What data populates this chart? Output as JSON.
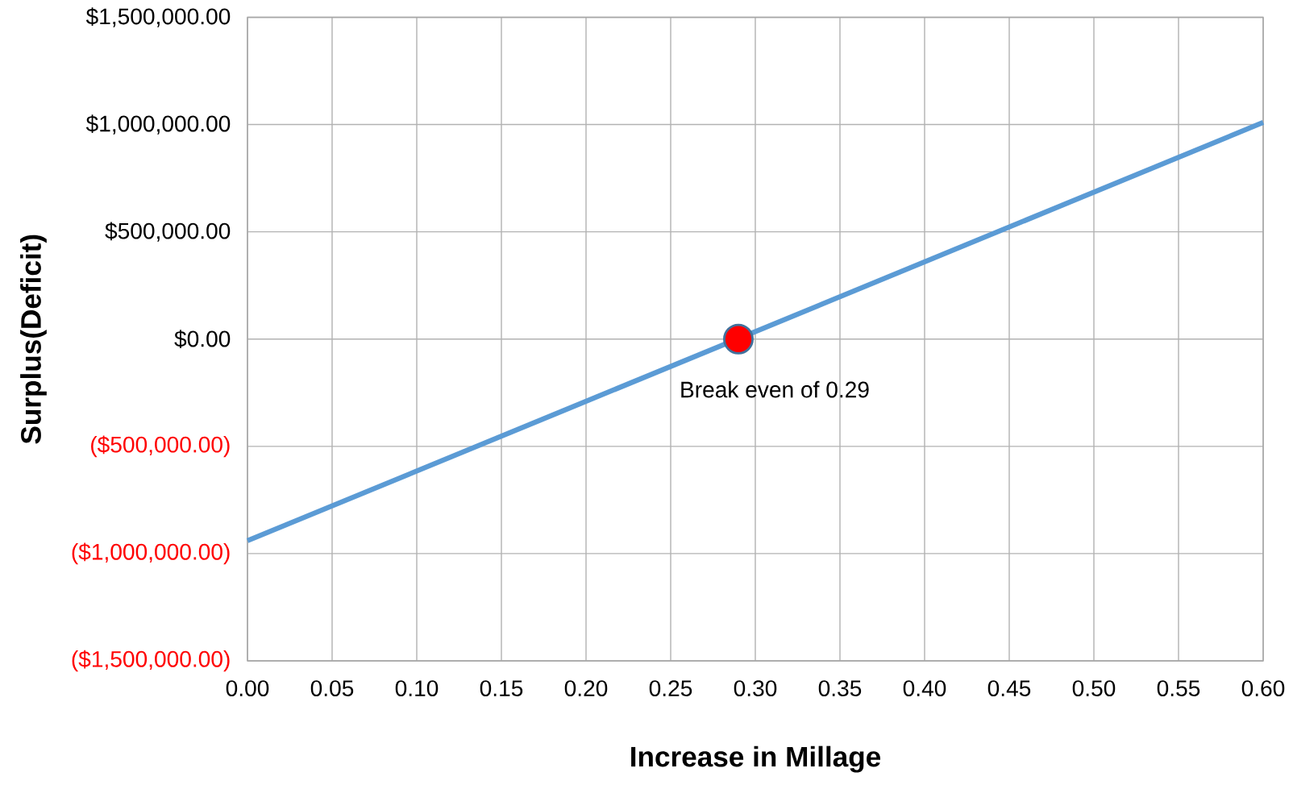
{
  "chart_data": {
    "type": "line",
    "xlabel": "Increase in Millage",
    "ylabel": "Surplus(Deficit)",
    "series": [
      {
        "color": "#5b9bd5",
        "x": [
          0,
          0.6
        ],
        "values": [
          -940000,
          1010000
        ],
        "marker": "none"
      },
      {
        "type": "scatter",
        "color": "#ff0000",
        "x": [
          0.29
        ],
        "values": [
          0
        ],
        "marker": "circle"
      }
    ],
    "xlim": [
      0,
      0.6
    ],
    "ylim": [
      -1500000,
      1500000
    ],
    "xticks": [
      {
        "value": 0,
        "label": "0.00"
      },
      {
        "value": 0.05,
        "label": "0.05"
      },
      {
        "value": 0.1,
        "label": "0.10"
      },
      {
        "value": 0.15,
        "label": "0.15"
      },
      {
        "value": 0.2,
        "label": "0.20"
      },
      {
        "value": 0.25,
        "label": "0.25"
      },
      {
        "value": 0.3,
        "label": "0.30"
      },
      {
        "value": 0.35,
        "label": "0.35"
      },
      {
        "value": 0.4,
        "label": "0.40"
      },
      {
        "value": 0.45,
        "label": "0.45"
      },
      {
        "value": 0.5,
        "label": "0.50"
      },
      {
        "value": 0.55,
        "label": "0.55"
      },
      {
        "value": 0.6,
        "label": "0.60"
      }
    ],
    "yticks": [
      {
        "value": -1500000,
        "label": "($1,500,000.00)"
      },
      {
        "value": -1000000,
        "label": "($1,000,000.00)"
      },
      {
        "value": -500000,
        "label": "($500,000.00)"
      },
      {
        "value": 0,
        "label": "$0.00"
      },
      {
        "value": 500000,
        "label": "$500,000.00"
      },
      {
        "value": 1000000,
        "label": "$1,000,000.00"
      },
      {
        "value": 1500000,
        "label": "$1,500,000.00"
      }
    ],
    "grid": true,
    "annotations": [
      {
        "text": "Break even of 0.29",
        "x": 0.29,
        "y": 0
      }
    ]
  }
}
